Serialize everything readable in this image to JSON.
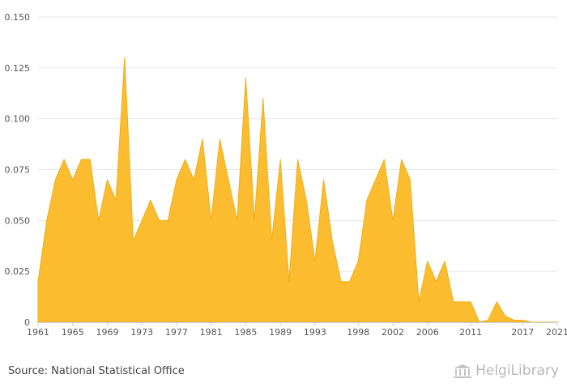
{
  "chart_data": {
    "type": "area",
    "title": "",
    "xlabel": "",
    "ylabel": "",
    "x_start": 1961,
    "x_end": 2021,
    "x": [
      1961,
      1962,
      1963,
      1964,
      1965,
      1966,
      1967,
      1968,
      1969,
      1970,
      1971,
      1972,
      1973,
      1974,
      1975,
      1976,
      1977,
      1978,
      1979,
      1980,
      1981,
      1982,
      1983,
      1984,
      1985,
      1986,
      1987,
      1988,
      1989,
      1990,
      1991,
      1992,
      1993,
      1994,
      1995,
      1996,
      1997,
      1998,
      1999,
      2000,
      2001,
      2002,
      2003,
      2004,
      2005,
      2006,
      2007,
      2008,
      2009,
      2010,
      2011,
      2012,
      2013,
      2014,
      2015,
      2016,
      2017,
      2018,
      2019,
      2020,
      2021
    ],
    "values": [
      0.02,
      0.05,
      0.07,
      0.08,
      0.07,
      0.08,
      0.08,
      0.05,
      0.07,
      0.06,
      0.13,
      0.04,
      0.05,
      0.06,
      0.05,
      0.05,
      0.07,
      0.08,
      0.07,
      0.09,
      0.05,
      0.09,
      0.07,
      0.05,
      0.12,
      0.05,
      0.11,
      0.04,
      0.08,
      0.02,
      0.08,
      0.06,
      0.03,
      0.07,
      0.04,
      0.02,
      0.02,
      0.03,
      0.06,
      0.07,
      0.08,
      0.05,
      0.08,
      0.07,
      0.01,
      0.03,
      0.02,
      0.03,
      0.01,
      0.01,
      0.01,
      0.0,
      0.001,
      0.01,
      0.003,
      0.001,
      0.001,
      0.0,
      0.0,
      0.0,
      0.0
    ],
    "ylim": [
      0,
      0.15
    ],
    "y_ticks": [
      "0",
      "0.025",
      "0.050",
      "0.075",
      "0.100",
      "0.125",
      "0.150"
    ],
    "y_tick_values": [
      0,
      0.025,
      0.05,
      0.075,
      0.1,
      0.125,
      0.15
    ],
    "x_tick_labels": [
      "1961",
      "1965",
      "1969",
      "1973",
      "1977",
      "1981",
      "1985",
      "1989",
      "1993",
      "1998",
      "2002",
      "2006",
      "2011",
      "2017",
      "2021"
    ],
    "grid": true,
    "colors": {
      "fill": "#fbbd2f",
      "stroke": "#f0ad1d",
      "grid": "#e6e6e6",
      "axis": "#cccccc"
    }
  },
  "footer": {
    "source": "Source: National Statistical Office",
    "brand": "HelgiLibrary",
    "brand_icon": "library-columns-icon"
  }
}
